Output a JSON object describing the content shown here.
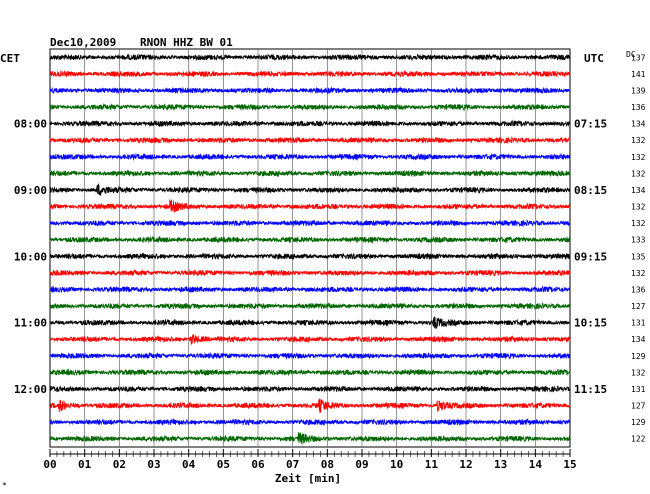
{
  "header": {
    "date": "Dec10,2009",
    "station": "RNON HHZ BW 01",
    "left_zone": "CET",
    "right_zone": "UTC",
    "dc_label": "DC",
    "footnote": "*"
  },
  "chart_data": {
    "type": "line",
    "title": "Dec10,2009   RNON HHZ BW 01",
    "xlabel": "Zeit [min]",
    "ylabel": "",
    "xlim": [
      0,
      15
    ],
    "x_ticks": [
      "00",
      "01",
      "02",
      "03",
      "04",
      "05",
      "06",
      "07",
      "08",
      "09",
      "10",
      "11",
      "12",
      "13",
      "14",
      "15"
    ],
    "grid": true,
    "trace_colors": [
      "#000000",
      "#ff0000",
      "#0000ff",
      "#006600"
    ],
    "left_hour_labels": [
      {
        "row": 4,
        "text": "08:00"
      },
      {
        "row": 8,
        "text": "09:00"
      },
      {
        "row": 12,
        "text": "10:00"
      },
      {
        "row": 16,
        "text": "11:00"
      },
      {
        "row": 20,
        "text": "12:00"
      }
    ],
    "right_hour_labels": [
      {
        "row": 4,
        "text": "07:15"
      },
      {
        "row": 8,
        "text": "08:15"
      },
      {
        "row": 12,
        "text": "09:15"
      },
      {
        "row": 16,
        "text": "10:15"
      },
      {
        "row": 20,
        "text": "11:15"
      }
    ],
    "dc_values": [
      "137",
      "141",
      "139",
      "136",
      "134",
      "132",
      "132",
      "132",
      "134",
      "132",
      "132",
      "133",
      "135",
      "132",
      "136",
      "127",
      "131",
      "134",
      "129",
      "132",
      "131",
      "127",
      "129",
      "122"
    ],
    "events": [
      {
        "row": 8,
        "minute": 1.4
      },
      {
        "row": 9,
        "minute": 3.5
      },
      {
        "row": 17,
        "minute": 4.1
      },
      {
        "row": 16,
        "minute": 11.1
      },
      {
        "row": 21,
        "minute": 0.3
      },
      {
        "row": 21,
        "minute": 7.8
      },
      {
        "row": 21,
        "minute": 11.2
      },
      {
        "row": 23,
        "minute": 7.2
      }
    ]
  }
}
